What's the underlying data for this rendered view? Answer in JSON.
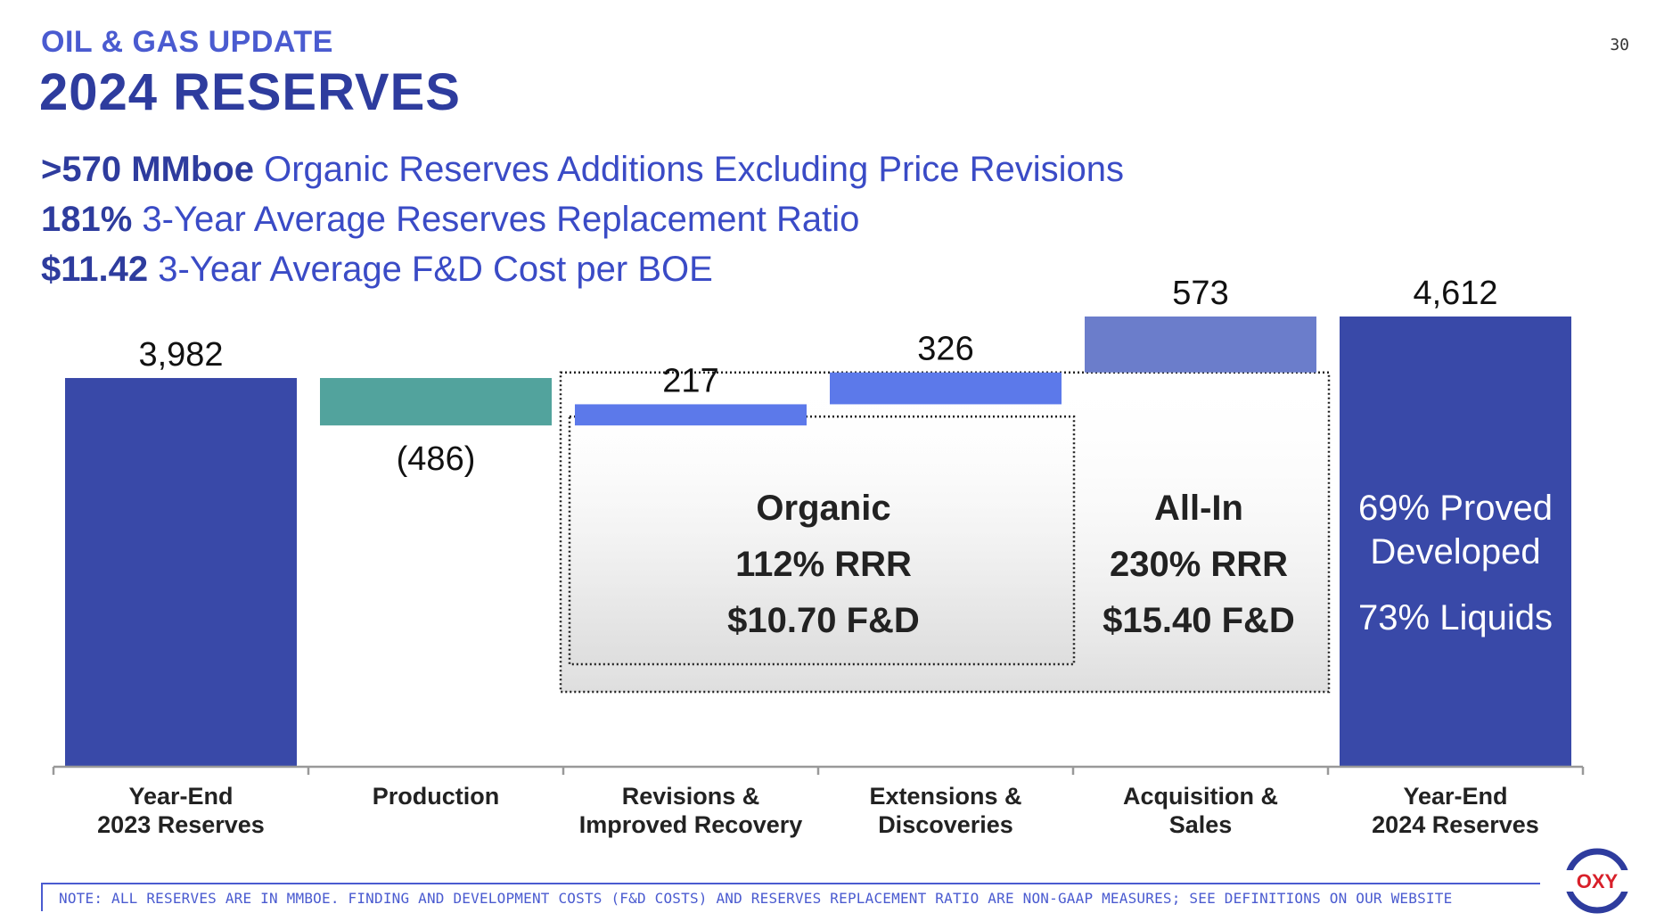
{
  "header": {
    "section_label": "OIL & GAS UPDATE",
    "title": "2024 RESERVES",
    "page_number": "30"
  },
  "kpis": [
    {
      "value": ">570 MMboe",
      "text": " Organic Reserves Additions Excluding Price Revisions"
    },
    {
      "value": "181%",
      "text": " 3-Year Average Reserves Replacement Ratio"
    },
    {
      "value": "$11.42",
      "text": " 3-Year Average F&D Cost per BOE"
    }
  ],
  "chart_data": {
    "type": "waterfall",
    "ylim": [
      0,
      4700
    ],
    "categories": [
      {
        "line1": "Year-End",
        "line2": "2023 Reserves"
      },
      {
        "line1": "Production",
        "line2": ""
      },
      {
        "line1": "Revisions &",
        "line2": "Improved Recovery"
      },
      {
        "line1": "Extensions &",
        "line2": "Discoveries"
      },
      {
        "line1": "Acquisition &",
        "line2": "Sales"
      },
      {
        "line1": "Year-End",
        "line2": "2024 Reserves"
      }
    ],
    "bars": [
      {
        "kind": "total",
        "value": 3982,
        "label": "3,982",
        "color": "#3949a8"
      },
      {
        "kind": "delta",
        "value": -486,
        "label": "(486)",
        "color": "#52a39d"
      },
      {
        "kind": "delta",
        "value": 217,
        "label": "217",
        "color": "#5c79ea"
      },
      {
        "kind": "delta",
        "value": 326,
        "label": "326",
        "color": "#5c79ea"
      },
      {
        "kind": "delta",
        "value": 573,
        "label": "573",
        "color": "#6b7dcb"
      },
      {
        "kind": "total",
        "value": 4612,
        "label": "4,612",
        "color": "#3949a8"
      }
    ],
    "annotations": {
      "organic": {
        "line1": "Organic",
        "line2": "112% RRR",
        "line3": "$10.70 F&D"
      },
      "all_in": {
        "line1": "All-In",
        "line2": "230% RRR",
        "line3": "$15.40 F&D"
      },
      "final": {
        "line1": "69% Proved",
        "line2": "Developed",
        "line3": "73% Liquids"
      }
    }
  },
  "footnote": "NOTE: ALL RESERVES ARE IN MMBOE. FINDING AND DEVELOPMENT COSTS (F&D COSTS) AND RESERVES REPLACEMENT RATIO ARE NON-GAAP MEASURES; SEE DEFINITIONS ON OUR WEBSITE",
  "logo": {
    "text": "OXY",
    "ring_color": "#2e3c9e",
    "text_color": "#d8202a"
  }
}
